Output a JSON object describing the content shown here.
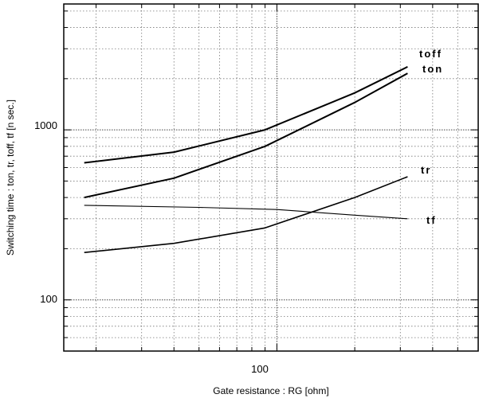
{
  "chart_data": {
    "type": "line",
    "title": "",
    "xlabel": "Gate resistance : RG [ohm]",
    "ylabel": "Switching time : ton, tr, toff, tf [n sec.]",
    "x_scale": "log",
    "y_scale": "log",
    "xlim": [
      15,
      600
    ],
    "ylim": [
      50,
      5500
    ],
    "x_ticks": [
      {
        "value": 100,
        "label": "100"
      }
    ],
    "y_ticks": [
      {
        "value": 100,
        "label": "100"
      },
      {
        "value": 1000,
        "label": "1000"
      }
    ],
    "grid": true,
    "series": [
      {
        "name": "toff",
        "x": [
          18,
          40,
          90,
          200,
          320
        ],
        "y": [
          640,
          740,
          1000,
          1650,
          2350
        ]
      },
      {
        "name": "ton",
        "x": [
          18,
          40,
          90,
          200,
          320
        ],
        "y": [
          400,
          520,
          800,
          1450,
          2150
        ]
      },
      {
        "name": "tr",
        "x": [
          18,
          40,
          90,
          200,
          320
        ],
        "y": [
          190,
          215,
          265,
          400,
          530
        ]
      },
      {
        "name": "tf",
        "x": [
          18,
          50,
          100,
          200,
          320
        ],
        "y": [
          360,
          350,
          340,
          315,
          300
        ]
      }
    ]
  }
}
